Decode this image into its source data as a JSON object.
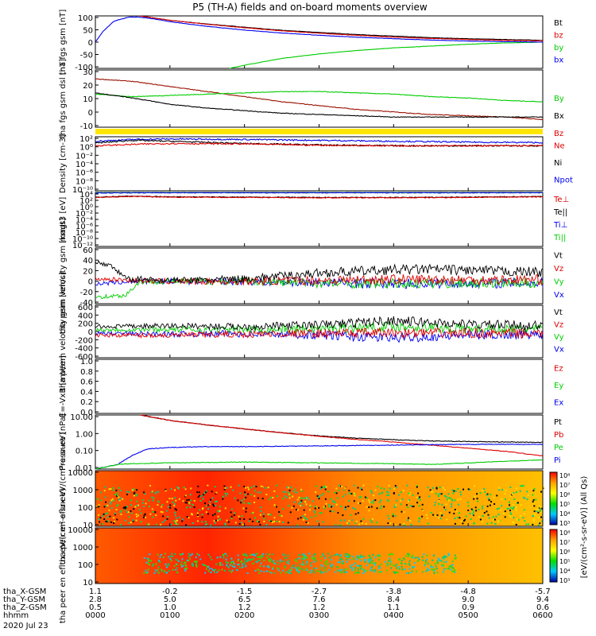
{
  "title": "P5 (TH-A) fields and on-board moments overview",
  "colors": {
    "black": "#000000",
    "red": "#e00000",
    "green": "#00cc00",
    "blue": "#0000ee",
    "darkred": "#9a1000",
    "yellow": "#ffe600"
  },
  "chart_data": [
    {
      "type": "line",
      "ylabel": "tha fgs gsm [nT]",
      "yticks": [
        "100",
        "50",
        "0",
        "-50",
        "-100"
      ],
      "ylim": [
        -100,
        100
      ],
      "legend": [
        {
          "name": "Bt",
          "color": "#000000"
        },
        {
          "name": "bz",
          "color": "#e00000"
        },
        {
          "name": "by",
          "color": "#00cc00"
        },
        {
          "name": "bx",
          "color": "#0000ee"
        }
      ],
      "series": [
        {
          "name": "Bt",
          "color": "#000000",
          "x": [
            0.6,
            1,
            1.5,
            2,
            2.5,
            3,
            3.5,
            4,
            4.5,
            5,
            5.5,
            6
          ],
          "y": [
            100,
            83,
            69,
            57,
            45,
            37,
            29,
            23,
            17,
            13,
            10,
            7
          ]
        },
        {
          "name": "bz",
          "color": "#e00000",
          "x": [
            0.6,
            1,
            1.5,
            2,
            2.5,
            3,
            3.5,
            4,
            4.5,
            5,
            5.5,
            6
          ],
          "y": [
            100,
            83,
            68,
            55,
            43,
            34,
            26,
            19,
            14,
            10,
            7,
            5
          ]
        },
        {
          "name": "by",
          "color": "#00cc00",
          "x": [
            1.8,
            2,
            2.5,
            3,
            3.5,
            4,
            4.5,
            5,
            5.5,
            6
          ],
          "y": [
            -100,
            -88,
            -62,
            -45,
            -32,
            -22,
            -15,
            -8,
            -3,
            0
          ]
        },
        {
          "name": "bx",
          "color": "#0000ee",
          "x": [
            0,
            0.1,
            0.25,
            0.45,
            0.6,
            0.8,
            1,
            1.5,
            2,
            2.5,
            3,
            3.5,
            4,
            4.5,
            5,
            5.5,
            6
          ],
          "y": [
            0,
            40,
            80,
            96,
            95,
            88,
            78,
            60,
            46,
            35,
            26,
            19,
            13,
            8,
            4,
            2,
            0
          ]
        }
      ]
    },
    {
      "type": "line",
      "ylabel": "tha fgs gsm dsl [nT]",
      "yticks": [
        "30",
        "20",
        "10",
        "0",
        "-10"
      ],
      "ylim": [
        -15,
        30
      ],
      "legend": [
        {
          "name": "By",
          "color": "#00cc00"
        },
        {
          "name": "Bx",
          "color": "#000000"
        },
        {
          "name": "Bz",
          "color": "#e00000"
        }
      ],
      "series": [
        {
          "name": "Bz",
          "color": "#9a1000",
          "x": [
            0,
            0.5,
            1,
            1.5,
            2,
            2.5,
            3,
            3.5,
            4,
            4.5,
            5,
            5.5,
            6
          ],
          "y": [
            23,
            21,
            17,
            13,
            9,
            5,
            2,
            -1,
            -3,
            -5,
            -6,
            -7,
            -9
          ]
        },
        {
          "name": "By",
          "color": "#00cc00",
          "x": [
            0,
            0.5,
            1,
            1.5,
            2,
            2.5,
            3,
            3.5,
            4,
            4.5,
            5,
            5.5,
            6
          ],
          "y": [
            11,
            9,
            10,
            11,
            12,
            13,
            13,
            12,
            11,
            9,
            8,
            6,
            5
          ]
        },
        {
          "name": "Bx",
          "color": "#000000",
          "x": [
            0,
            0.5,
            1,
            1.5,
            2,
            2.5,
            3,
            3.5,
            4,
            4.5,
            5,
            5.5,
            6
          ],
          "y": [
            12,
            8,
            3,
            0,
            -2,
            -4,
            -5,
            -6,
            -7,
            -7,
            -7,
            -7,
            -7
          ]
        }
      ]
    },
    {
      "type": "line",
      "ylabel": "Density [cm-3]",
      "yticks": [
        "10²",
        "10⁰",
        "10⁻²",
        "10⁻⁴",
        "10⁻⁶",
        "10⁻⁸",
        "10⁻¹⁰"
      ],
      "yscale": "log",
      "ylim": [
        -10,
        2
      ],
      "legend": [
        {
          "name": "Ne",
          "color": "#e00000"
        },
        {
          "name": "Ni",
          "color": "#000000"
        },
        {
          "name": "Npot",
          "color": "#0000ee"
        }
      ],
      "series": [
        {
          "name": "Npot",
          "color": "#0000ee",
          "x": [
            0,
            0.5,
            1,
            2,
            3,
            4,
            5,
            6
          ],
          "y": [
            1.0,
            1.4,
            1.5,
            1.4,
            1.2,
            1.0,
            0.8,
            0.7
          ]
        },
        {
          "name": "Ni",
          "color": "#000000",
          "x": [
            0,
            0.5,
            1,
            2,
            3,
            4,
            5,
            6
          ],
          "y": [
            0.6,
            1.2,
            1.0,
            0.5,
            0.2,
            0.0,
            0.0,
            0.0
          ]
        },
        {
          "name": "Ne",
          "color": "#e00000",
          "x": [
            0,
            0.5,
            1,
            2,
            3,
            4,
            5,
            6
          ],
          "y": [
            0.0,
            0.3,
            0.5,
            0.4,
            0.1,
            0.0,
            0.0,
            0.0
          ]
        }
      ]
    },
    {
      "type": "line",
      "ylabel": "magt3 [eV]",
      "yticks": [
        "10⁴",
        "10²",
        "10⁰",
        "10⁻²",
        "10⁻⁴",
        "10⁻⁶",
        "10⁻⁸",
        "10⁻¹⁰",
        "10⁻¹²"
      ],
      "yscale": "log",
      "ylim": [
        -12,
        4
      ],
      "legend": [
        {
          "name": "Te⊥",
          "color": "#e00000"
        },
        {
          "name": "Te||",
          "color": "#000000"
        },
        {
          "name": "Ti⊥",
          "color": "#0000ee"
        },
        {
          "name": "Ti||",
          "color": "#00cc00"
        }
      ],
      "series": [
        {
          "name": "Ti||",
          "color": "#00cc00",
          "x": [
            0,
            0.5,
            1,
            2,
            3,
            4,
            5,
            6
          ],
          "y": [
            3.9,
            3.9,
            3.9,
            3.9,
            3.9,
            3.9,
            3.9,
            3.9
          ]
        },
        {
          "name": "Ti⊥",
          "color": "#0000ee",
          "x": [
            0,
            0.5,
            1,
            2,
            3,
            4,
            5,
            6
          ],
          "y": [
            3.8,
            3.9,
            3.9,
            3.9,
            3.9,
            3.9,
            3.9,
            3.9
          ]
        },
        {
          "name": "Te||",
          "color": "#000000",
          "x": [
            0,
            0.5,
            1,
            2,
            3,
            4,
            5,
            6
          ],
          "y": [
            2.6,
            2.9,
            2.7,
            2.6,
            2.5,
            2.5,
            2.6,
            2.8
          ]
        },
        {
          "name": "Te⊥",
          "color": "#e00000",
          "x": [
            0,
            0.5,
            1,
            2,
            3,
            4,
            5,
            6
          ],
          "y": [
            2.5,
            2.8,
            2.6,
            2.5,
            2.4,
            2.4,
            2.5,
            2.7
          ]
        }
      ]
    },
    {
      "type": "line",
      "ylabel": "tha peim velocity gsm [km/s]",
      "yticks": [
        "60",
        "40",
        "20",
        "0",
        "-20",
        "-40"
      ],
      "ylim": [
        -40,
        60
      ],
      "legend": [
        {
          "name": "Vt",
          "color": "#000000"
        },
        {
          "name": "Vz",
          "color": "#e00000"
        },
        {
          "name": "Vy",
          "color": "#00cc00"
        },
        {
          "name": "Vx",
          "color": "#0000ee"
        }
      ],
      "series": [
        {
          "name": "Vx",
          "color": "#0000ee",
          "x": [
            0,
            0.5,
            1,
            2,
            3,
            4,
            5,
            6
          ],
          "y": [
            -5,
            0,
            0,
            0,
            -2,
            -4,
            -3,
            -3
          ]
        },
        {
          "name": "Vy",
          "color": "#00cc00",
          "x": [
            0,
            0.4,
            0.6,
            1,
            2,
            3,
            4,
            5,
            6
          ],
          "y": [
            -28,
            -25,
            0,
            0,
            0,
            -3,
            -4,
            -3,
            -3
          ]
        },
        {
          "name": "Vz",
          "color": "#e00000",
          "x": [
            0,
            0.5,
            1,
            2,
            3,
            4,
            5,
            6
          ],
          "y": [
            5,
            2,
            0,
            0,
            2,
            4,
            3,
            3
          ]
        },
        {
          "name": "Vt",
          "color": "#000000",
          "x": [
            0,
            0.2,
            0.4,
            0.5,
            0.6,
            0.8,
            1,
            1.5,
            2,
            2.5,
            3,
            3.5,
            4,
            4.5,
            5,
            5.5,
            6
          ],
          "y": [
            35,
            28,
            8,
            2,
            5,
            3,
            2,
            3,
            5,
            10,
            15,
            18,
            21,
            22,
            20,
            18,
            17
          ]
        }
      ]
    },
    {
      "type": "line",
      "ylabel": "tha peem velocity gsm [km/s]",
      "yticks": [
        "600",
        "400",
        "200",
        "0",
        "-200",
        "-400",
        "-600"
      ],
      "ylim": [
        -600,
        600
      ],
      "legend": [
        {
          "name": "Vt",
          "color": "#000000"
        },
        {
          "name": "Vz",
          "color": "#e00000"
        },
        {
          "name": "Vy",
          "color": "#00cc00"
        },
        {
          "name": "Vx",
          "color": "#0000ee"
        }
      ],
      "series": [
        {
          "name": "Vx",
          "color": "#0000ee",
          "x": [
            0,
            1,
            2,
            3,
            4,
            5,
            6
          ],
          "y": [
            -40,
            -60,
            -50,
            -80,
            -150,
            -80,
            -60
          ]
        },
        {
          "name": "Vy",
          "color": "#00cc00",
          "x": [
            0,
            1,
            2,
            3,
            4,
            5,
            6
          ],
          "y": [
            40,
            50,
            40,
            60,
            120,
            60,
            50
          ]
        },
        {
          "name": "Vz",
          "color": "#e00000",
          "x": [
            0,
            1,
            2,
            3,
            4,
            5,
            6
          ],
          "y": [
            -80,
            -90,
            -60,
            -40,
            -30,
            -40,
            -50
          ]
        },
        {
          "name": "Vt",
          "color": "#000000",
          "x": [
            0,
            1,
            2,
            3,
            4,
            5,
            6
          ],
          "y": [
            110,
            130,
            110,
            150,
            250,
            160,
            130
          ]
        }
      ]
    },
    {
      "type": "line",
      "ylabel": "E=-VxB [mV/m]",
      "yticks": [
        "1.0",
        "0.8",
        "0.6",
        "0.4",
        "0.2",
        "0.0"
      ],
      "ylim": [
        0,
        1
      ],
      "legend": [
        {
          "name": "Ez",
          "color": "#e00000"
        },
        {
          "name": "Ey",
          "color": "#00cc00"
        },
        {
          "name": "Ex",
          "color": "#0000ee"
        }
      ],
      "series": []
    },
    {
      "type": "line",
      "ylabel": "Pressure [nPa]",
      "yticks": [
        "10.00",
        "1.00",
        "0.10",
        "0.01"
      ],
      "yscale": "log",
      "ylim": [
        -2.2,
        1.3
      ],
      "legend": [
        {
          "name": "Pt",
          "color": "#000000"
        },
        {
          "name": "Pb",
          "color": "#e00000"
        },
        {
          "name": "Pe",
          "color": "#00cc00"
        },
        {
          "name": "Pi",
          "color": "#0000ee"
        }
      ],
      "series": [
        {
          "name": "Pt",
          "color": "#000000",
          "x": [
            0.6,
            1,
            1.5,
            2,
            2.5,
            3,
            3.5,
            4,
            4.5,
            5,
            5.5,
            6
          ],
          "y": [
            1.3,
            0.95,
            0.65,
            0.4,
            0.15,
            -0.05,
            -0.2,
            -0.3,
            -0.38,
            -0.42,
            -0.45,
            -0.47
          ]
        },
        {
          "name": "Pb",
          "color": "#e00000",
          "x": [
            0.6,
            1,
            1.5,
            2,
            2.5,
            3,
            3.5,
            4,
            4.5,
            5,
            5.5,
            6
          ],
          "y": [
            1.3,
            0.95,
            0.65,
            0.4,
            0.15,
            -0.08,
            -0.28,
            -0.45,
            -0.65,
            -0.85,
            -1.05,
            -1.35
          ]
        },
        {
          "name": "Pi",
          "color": "#0000ee",
          "x": [
            0,
            0.3,
            0.5,
            0.7,
            1,
            1.5,
            2,
            3,
            4,
            5,
            6
          ],
          "y": [
            -2.2,
            -1.9,
            -1.3,
            -0.9,
            -0.8,
            -0.75,
            -0.75,
            -0.7,
            -0.65,
            -0.6,
            -0.6
          ]
        },
        {
          "name": "Pe",
          "color": "#00cc00",
          "x": [
            0,
            0.3,
            0.5,
            1,
            2,
            3,
            4,
            4.5,
            5,
            5.5,
            6
          ],
          "y": [
            -2.2,
            -1.9,
            -1.85,
            -1.8,
            -1.75,
            -1.8,
            -1.85,
            -1.9,
            -1.8,
            -1.7,
            -1.6
          ]
        }
      ]
    },
    {
      "type": "heatmap",
      "ylabel": "tha peir en eflux eV/(cm²-s-sr-eV)",
      "yticks": [
        "10000",
        "1000",
        "100",
        "10"
      ],
      "ylim": [
        5,
        20000
      ],
      "colorbar_ticks": [
        "10⁸",
        "10⁷",
        "10⁶",
        "10⁵",
        "10⁴",
        "10³"
      ],
      "colorbar_label": "[eV/(cm²-s-sr-eV)] (All Qs)"
    },
    {
      "type": "heatmap",
      "ylabel": "tha peer en eflux eV/(cm²-s-sr-eV)",
      "yticks": [
        "10000",
        "1000",
        "100",
        "10"
      ],
      "ylim": [
        5,
        30000
      ],
      "colorbar_ticks": [
        "10⁸",
        "10⁷",
        "10⁶",
        "10⁵",
        "10⁴",
        "10³"
      ],
      "colorbar_label": "[eV/(cm²-s-sr-eV)] (All Qs)"
    }
  ],
  "xaxis": {
    "rows": [
      {
        "label": "tha_X-GSM",
        "values": [
          "1.1",
          "-0.2",
          "-1.5",
          "-2.7",
          "-3.8",
          "-4.8",
          "-5.7"
        ]
      },
      {
        "label": "tha_Y-GSM",
        "values": [
          "2.8",
          "5.0",
          "6.5",
          "7.6",
          "8.4",
          "9.0",
          "9.4"
        ]
      },
      {
        "label": "tha_Z-GSM",
        "values": [
          "0.5",
          "1.0",
          "1.2",
          "1.2",
          "1.1",
          "0.9",
          "0.6"
        ]
      },
      {
        "label": "hhmm",
        "values": [
          "0000",
          "0100",
          "0200",
          "0300",
          "0400",
          "0500",
          "0600"
        ]
      }
    ],
    "date": "2020 Jul 23"
  }
}
